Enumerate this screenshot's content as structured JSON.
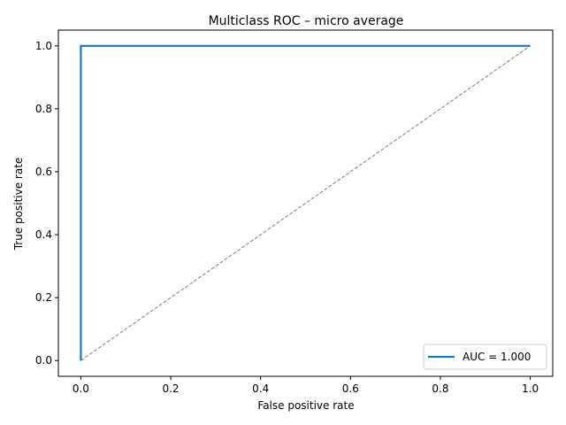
{
  "chart_data": {
    "type": "line",
    "title": "Multiclass ROC – micro average",
    "xlabel": "False positive rate",
    "ylabel": "True positive rate",
    "xlim": [
      -0.05,
      1.05
    ],
    "ylim": [
      -0.05,
      1.05
    ],
    "xticks": [
      0.0,
      0.2,
      0.4,
      0.6,
      0.8,
      1.0
    ],
    "xtick_labels": [
      "0.0",
      "0.2",
      "0.4",
      "0.6",
      "0.8",
      "1.0"
    ],
    "yticks": [
      0.0,
      0.2,
      0.4,
      0.6,
      0.8,
      1.0
    ],
    "ytick_labels": [
      "0.0",
      "0.2",
      "0.4",
      "0.6",
      "0.8",
      "1.0"
    ],
    "grid": false,
    "legend_position": "lower-right",
    "series": [
      {
        "name": "AUC = 1.000",
        "x": [
          0.0,
          0.0,
          1.0
        ],
        "y": [
          0.0,
          1.0,
          1.0
        ],
        "color": "#1f77b4",
        "style": "solid"
      },
      {
        "x": [
          0.0,
          1.0
        ],
        "y": [
          0.0,
          1.0
        ],
        "color": "#808080",
        "style": "dashed"
      }
    ]
  }
}
